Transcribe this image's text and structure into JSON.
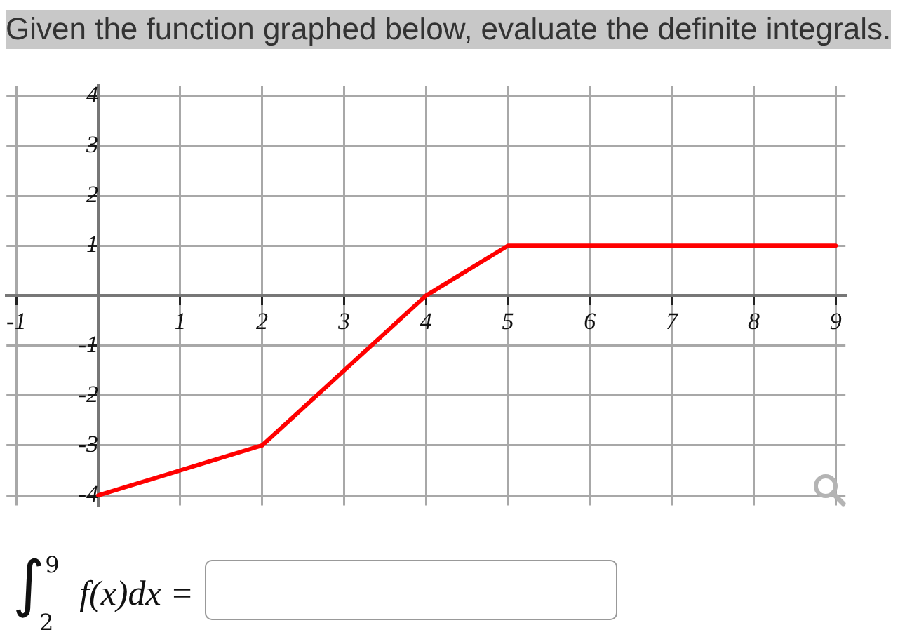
{
  "chart_data": {
    "type": "line",
    "title": "Given the function graphed below, evaluate the definite integrals.",
    "x": [
      0,
      2,
      4,
      5,
      9
    ],
    "series": [
      {
        "color": "#ff0000",
        "values": [
          -4,
          -3,
          0,
          1,
          1
        ]
      }
    ],
    "xlim": [
      -1.12,
      9.12
    ],
    "ylim": [
      -4.2,
      4.2
    ],
    "xticks": [
      -1,
      1,
      2,
      3,
      4,
      5,
      6,
      7,
      8,
      9
    ],
    "yticks": [
      -4,
      -3,
      -2,
      -1,
      1,
      2,
      3,
      4
    ],
    "grid": true,
    "marker": "none",
    "line_style": "solid",
    "annotations": [
      "∫$_{2}$$^{9}$ f(x)dx ="
    ]
  }
}
